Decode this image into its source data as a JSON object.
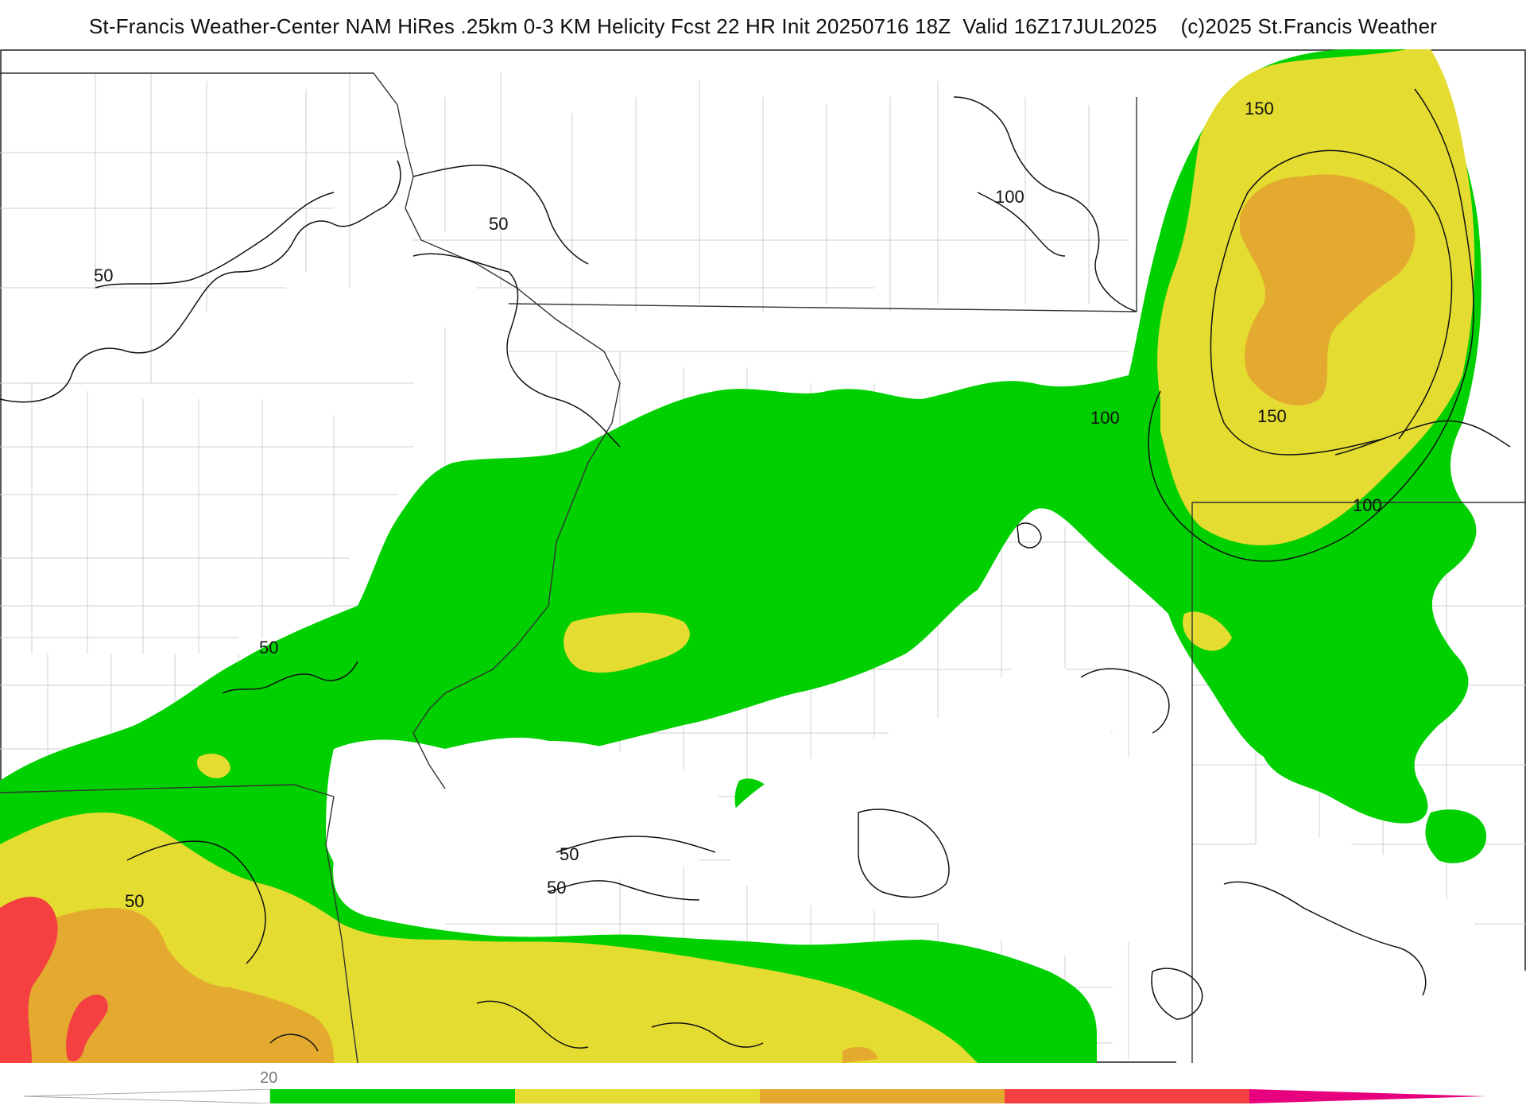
{
  "title": {
    "text": "St-Francis Weather-Center NAM HiRes .25km 0-3 KM Helicity Fcst 22 HR Init 20250716 18Z  Valid 16Z17JUL2025    (c)2025 St.Francis Weather"
  },
  "contour_labels": {
    "c1": "50",
    "c2": "50",
    "c3": "50",
    "c4": "50",
    "c5": "50",
    "c6": "50",
    "c7": "100",
    "c8": "100",
    "c9": "100",
    "c10": "150",
    "c11": "150"
  },
  "colorbar": {
    "tick_label": "20",
    "colors": {
      "green": "#00d000",
      "yellow": "#e4dc30",
      "orange": "#e4aa30",
      "red": "#f44040",
      "magenta": "#e6007e"
    }
  },
  "colors": {
    "fill_green": "#00d000",
    "fill_yellow": "#e4dc30",
    "fill_orange": "#e4aa30",
    "fill_red": "#f44040",
    "contour": "#111111",
    "county_lines": "#cfcfcf",
    "state_lines": "#333333"
  }
}
